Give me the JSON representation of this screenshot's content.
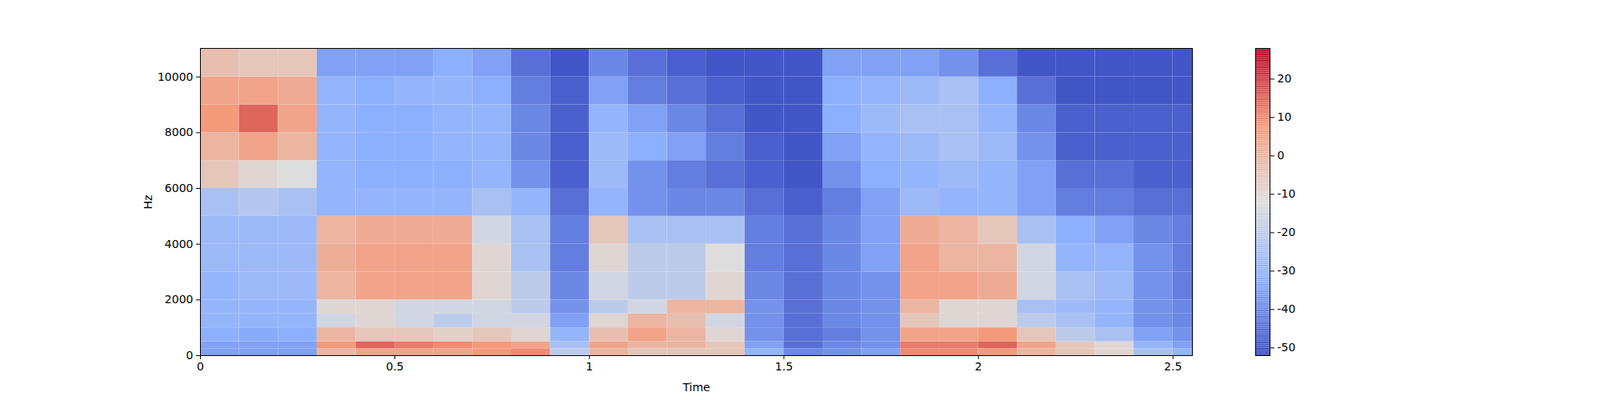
{
  "chart_data": {
    "type": "heatmap",
    "xlabel": "Time",
    "ylabel": "Hz",
    "xlim": [
      0,
      2.55
    ],
    "xticks": [
      0,
      0.5,
      1,
      1.5,
      2,
      2.5
    ],
    "ylim": [
      0,
      11025
    ],
    "yticks": [
      0,
      2000,
      4000,
      6000,
      8000,
      10000
    ],
    "cells": {
      "time_edges": [
        0,
        0.1,
        0.2,
        0.3,
        0.4,
        0.5,
        0.6,
        0.7,
        0.8,
        0.9,
        1.0,
        1.1,
        1.2,
        1.3,
        1.4,
        1.5,
        1.6,
        1.7,
        1.8,
        1.9,
        2.0,
        2.1,
        2.2,
        2.3,
        2.4,
        2.5,
        2.55
      ],
      "freq_edges": [
        0,
        250,
        500,
        1000,
        1500,
        2000,
        3000,
        4000,
        5000,
        6000,
        7000,
        8000,
        9000,
        10000,
        11025
      ],
      "values": [
        [
          -35,
          -35,
          -35,
          0,
          5,
          5,
          5,
          8,
          10,
          -20,
          0,
          -5,
          -5,
          -5,
          -30,
          -40,
          -38,
          -35,
          10,
          10,
          8,
          0,
          -5,
          -10,
          -25,
          -30
        ],
        [
          -35,
          -35,
          -35,
          8,
          15,
          12,
          10,
          8,
          5,
          -25,
          5,
          0,
          0,
          -5,
          -35,
          -45,
          -40,
          -38,
          12,
          12,
          15,
          5,
          -5,
          -10,
          -30,
          -35
        ],
        [
          -32,
          -33,
          -32,
          0,
          -5,
          -5,
          -8,
          -5,
          -10,
          -30,
          -3,
          5,
          0,
          -10,
          -38,
          -45,
          -42,
          -38,
          5,
          5,
          8,
          -5,
          -20,
          -25,
          -35,
          -38
        ],
        [
          -30,
          -30,
          -30,
          -15,
          -10,
          -15,
          -20,
          -15,
          -15,
          -35,
          -10,
          0,
          -3,
          -15,
          -38,
          -45,
          -40,
          -38,
          -5,
          -10,
          -10,
          -20,
          -25,
          -30,
          -38,
          -40
        ],
        [
          -30,
          -30,
          -30,
          -10,
          -10,
          -15,
          -15,
          -15,
          -20,
          -38,
          -20,
          -15,
          0,
          0,
          -38,
          -45,
          -40,
          -38,
          0,
          -10,
          -10,
          -25,
          -28,
          -30,
          -38,
          -40
        ],
        [
          -30,
          -28,
          -28,
          0,
          5,
          5,
          5,
          -10,
          -20,
          -40,
          -15,
          -20,
          -20,
          -10,
          -40,
          -45,
          -40,
          -38,
          5,
          5,
          3,
          -15,
          -25,
          -28,
          -38,
          -42
        ],
        [
          -28,
          -28,
          -28,
          2,
          5,
          5,
          5,
          -10,
          -25,
          -42,
          -10,
          -20,
          -20,
          -12,
          -42,
          -45,
          -40,
          -35,
          5,
          0,
          0,
          -15,
          -30,
          -30,
          -38,
          -42
        ],
        [
          -28,
          -28,
          -28,
          0,
          3,
          3,
          3,
          -15,
          -25,
          -42,
          -5,
          -25,
          -25,
          -25,
          -42,
          -45,
          -40,
          -35,
          3,
          0,
          -5,
          -25,
          -32,
          -35,
          -40,
          -42
        ],
        [
          -25,
          -22,
          -25,
          -30,
          -30,
          -30,
          -30,
          -25,
          -30,
          -45,
          -30,
          -38,
          -40,
          -40,
          -45,
          -48,
          -42,
          -35,
          -28,
          -30,
          -30,
          -35,
          -42,
          -42,
          -45,
          -45
        ],
        [
          -5,
          -10,
          -12,
          -30,
          -32,
          -32,
          -32,
          -30,
          -38,
          -48,
          -28,
          -38,
          -42,
          -45,
          -48,
          -50,
          -38,
          -32,
          -30,
          -28,
          -30,
          -35,
          -45,
          -45,
          -48,
          -48
        ],
        [
          0,
          5,
          0,
          -30,
          -32,
          -32,
          -30,
          -30,
          -40,
          -48,
          -28,
          -32,
          -35,
          -42,
          -48,
          -50,
          -35,
          -30,
          -28,
          -25,
          -28,
          -38,
          -48,
          -48,
          -48,
          -48
        ],
        [
          8,
          15,
          5,
          -30,
          -32,
          -32,
          -30,
          -30,
          -40,
          -48,
          -30,
          -35,
          -40,
          -45,
          -50,
          -50,
          -32,
          -28,
          -25,
          -25,
          -30,
          -40,
          -48,
          -48,
          -48,
          -48
        ],
        [
          5,
          5,
          3,
          -30,
          -32,
          -30,
          -30,
          -32,
          -42,
          -48,
          -35,
          -42,
          -45,
          -48,
          -50,
          -50,
          -32,
          -30,
          -28,
          -25,
          -32,
          -45,
          -50,
          -50,
          -50,
          -50
        ],
        [
          -3,
          -5,
          -5,
          -35,
          -35,
          -35,
          -32,
          -35,
          -45,
          -50,
          -40,
          -45,
          -48,
          -50,
          -50,
          -50,
          -35,
          -35,
          -35,
          -38,
          -45,
          -50,
          -50,
          -50,
          -50,
          -50
        ]
      ]
    },
    "colorbar": {
      "range": [
        -52,
        28
      ],
      "ticks": [
        -50,
        -40,
        -30,
        -20,
        -10,
        0,
        10,
        20
      ]
    }
  }
}
